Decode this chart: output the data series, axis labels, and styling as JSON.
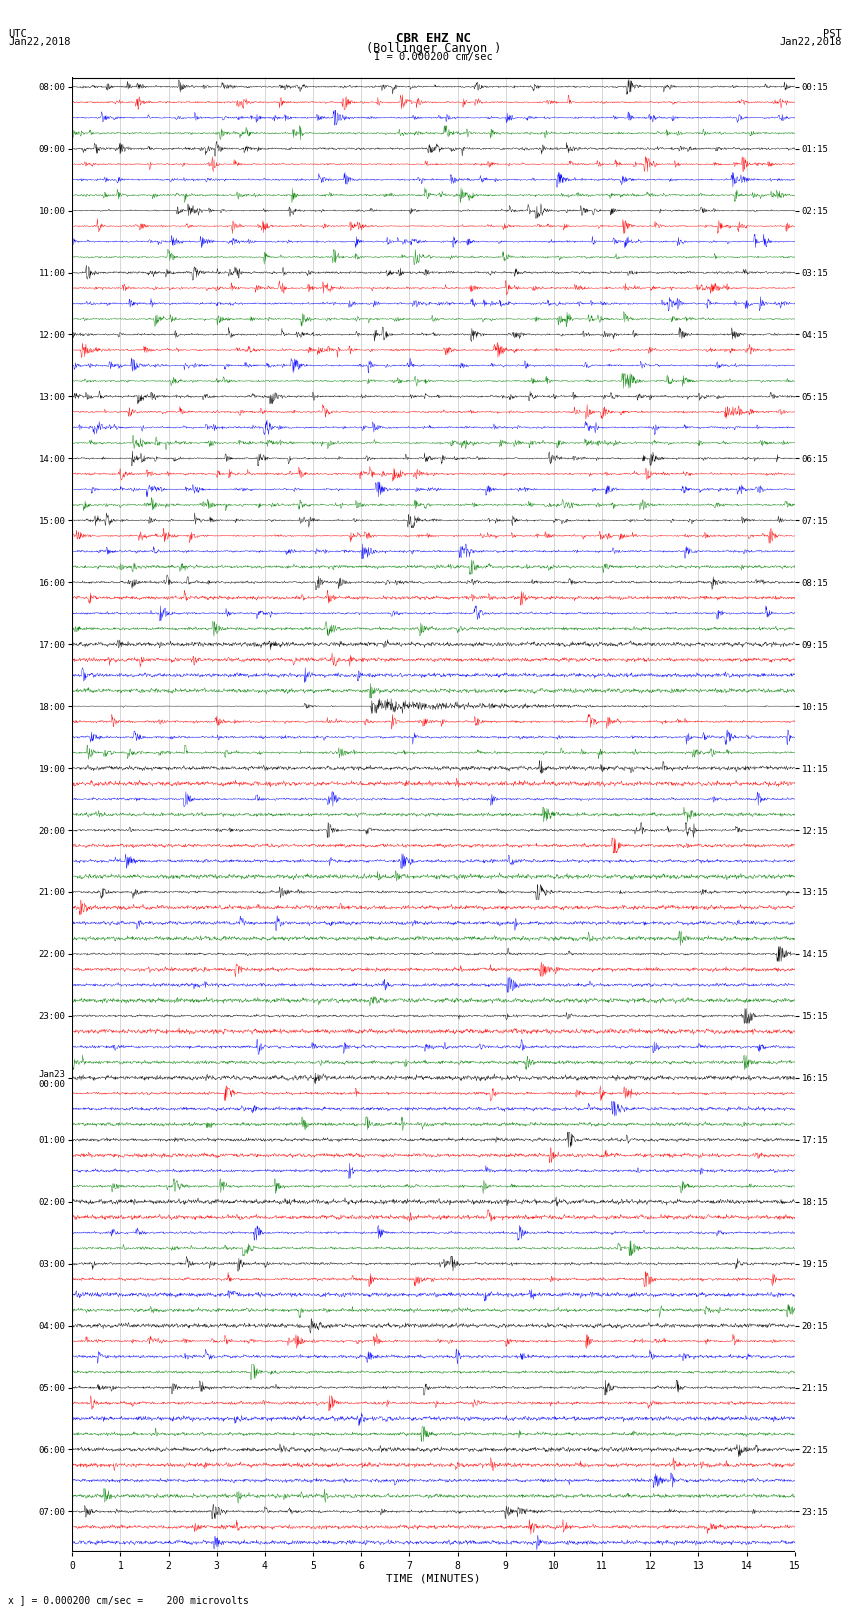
{
  "title_line1": "CBR EHZ NC",
  "title_line2": "(Bollinger Canyon )",
  "scale_label": "I = 0.000200 cm/sec",
  "left_header_line1": "UTC",
  "left_header_line2": "Jan22,2018",
  "right_header_line1": "PST",
  "right_header_line2": "Jan22,2018",
  "xlabel": "TIME (MINUTES)",
  "bottom_note": "x ] = 0.000200 cm/sec =    200 microvolts",
  "colors_cycle": [
    "black",
    "red",
    "blue",
    "green"
  ],
  "bg_color": "#ffffff",
  "grid_color": "#888888",
  "x_min": 0,
  "x_max": 15,
  "x_ticks": [
    0,
    1,
    2,
    3,
    4,
    5,
    6,
    7,
    8,
    9,
    10,
    11,
    12,
    13,
    14,
    15
  ],
  "num_rows": 95,
  "num_points": 1800,
  "seed": 42,
  "utc_labels": [
    "08:00",
    "",
    "",
    "",
    "09:00",
    "",
    "",
    "",
    "10:00",
    "",
    "",
    "",
    "11:00",
    "",
    "",
    "",
    "12:00",
    "",
    "",
    "",
    "13:00",
    "",
    "",
    "",
    "14:00",
    "",
    "",
    "",
    "15:00",
    "",
    "",
    "",
    "16:00",
    "",
    "",
    "",
    "17:00",
    "",
    "",
    "",
    "18:00",
    "",
    "",
    "",
    "19:00",
    "",
    "",
    "",
    "20:00",
    "",
    "",
    "",
    "21:00",
    "",
    "",
    "",
    "22:00",
    "",
    "",
    "",
    "23:00",
    "",
    "",
    "",
    "Jan23\n00:00",
    "",
    "",
    "",
    "01:00",
    "",
    "",
    "",
    "02:00",
    "",
    "",
    "",
    "03:00",
    "",
    "",
    "",
    "04:00",
    "",
    "",
    "",
    "05:00",
    "",
    "",
    "",
    "06:00",
    "",
    "",
    "",
    "07:00",
    "",
    ""
  ],
  "pst_labels": [
    "00:15",
    "",
    "",
    "",
    "01:15",
    "",
    "",
    "",
    "02:15",
    "",
    "",
    "",
    "03:15",
    "",
    "",
    "",
    "04:15",
    "",
    "",
    "",
    "05:15",
    "",
    "",
    "",
    "06:15",
    "",
    "",
    "",
    "07:15",
    "",
    "",
    "",
    "08:15",
    "",
    "",
    "",
    "09:15",
    "",
    "",
    "",
    "10:15",
    "",
    "",
    "",
    "11:15",
    "",
    "",
    "",
    "12:15",
    "",
    "",
    "",
    "13:15",
    "",
    "",
    "",
    "14:15",
    "",
    "",
    "",
    "15:15",
    "",
    "",
    "",
    "16:15",
    "",
    "",
    "",
    "17:15",
    "",
    "",
    "",
    "18:15",
    "",
    "",
    "",
    "19:15",
    "",
    "",
    "",
    "20:15",
    "",
    "",
    "",
    "21:15",
    "",
    "",
    "",
    "22:15",
    "",
    "",
    "",
    "23:15",
    "",
    ""
  ],
  "row_amplitude": [
    0.3,
    0.55,
    0.45,
    0.38,
    0.35,
    0.5,
    0.48,
    0.42,
    0.6,
    0.7,
    0.65,
    0.55,
    0.52,
    0.58,
    0.62,
    0.5,
    0.48,
    0.45,
    0.4,
    0.38,
    0.35,
    0.42,
    0.38,
    0.32,
    0.3,
    0.28,
    0.35,
    0.32,
    0.25,
    0.2,
    0.18,
    0.15,
    0.12,
    0.1,
    0.12,
    0.1,
    0.08,
    0.06,
    0.08,
    0.07,
    0.55,
    0.45,
    0.15,
    0.1,
    0.08,
    0.06,
    0.07,
    0.06,
    0.05,
    0.05,
    0.06,
    0.05,
    0.08,
    0.06,
    0.05,
    0.05,
    0.06,
    0.05,
    0.05,
    0.05,
    0.05,
    0.05,
    0.05,
    0.05,
    0.05,
    0.05,
    0.05,
    0.05,
    0.05,
    0.05,
    0.05,
    0.05,
    0.05,
    0.05,
    0.05,
    0.05,
    0.05,
    0.05,
    0.05,
    0.05,
    0.05,
    0.18,
    0.12,
    0.08,
    0.06,
    0.05,
    0.05,
    0.05,
    0.05,
    0.05,
    0.05,
    0.05,
    0.05,
    0.05,
    0.05
  ]
}
